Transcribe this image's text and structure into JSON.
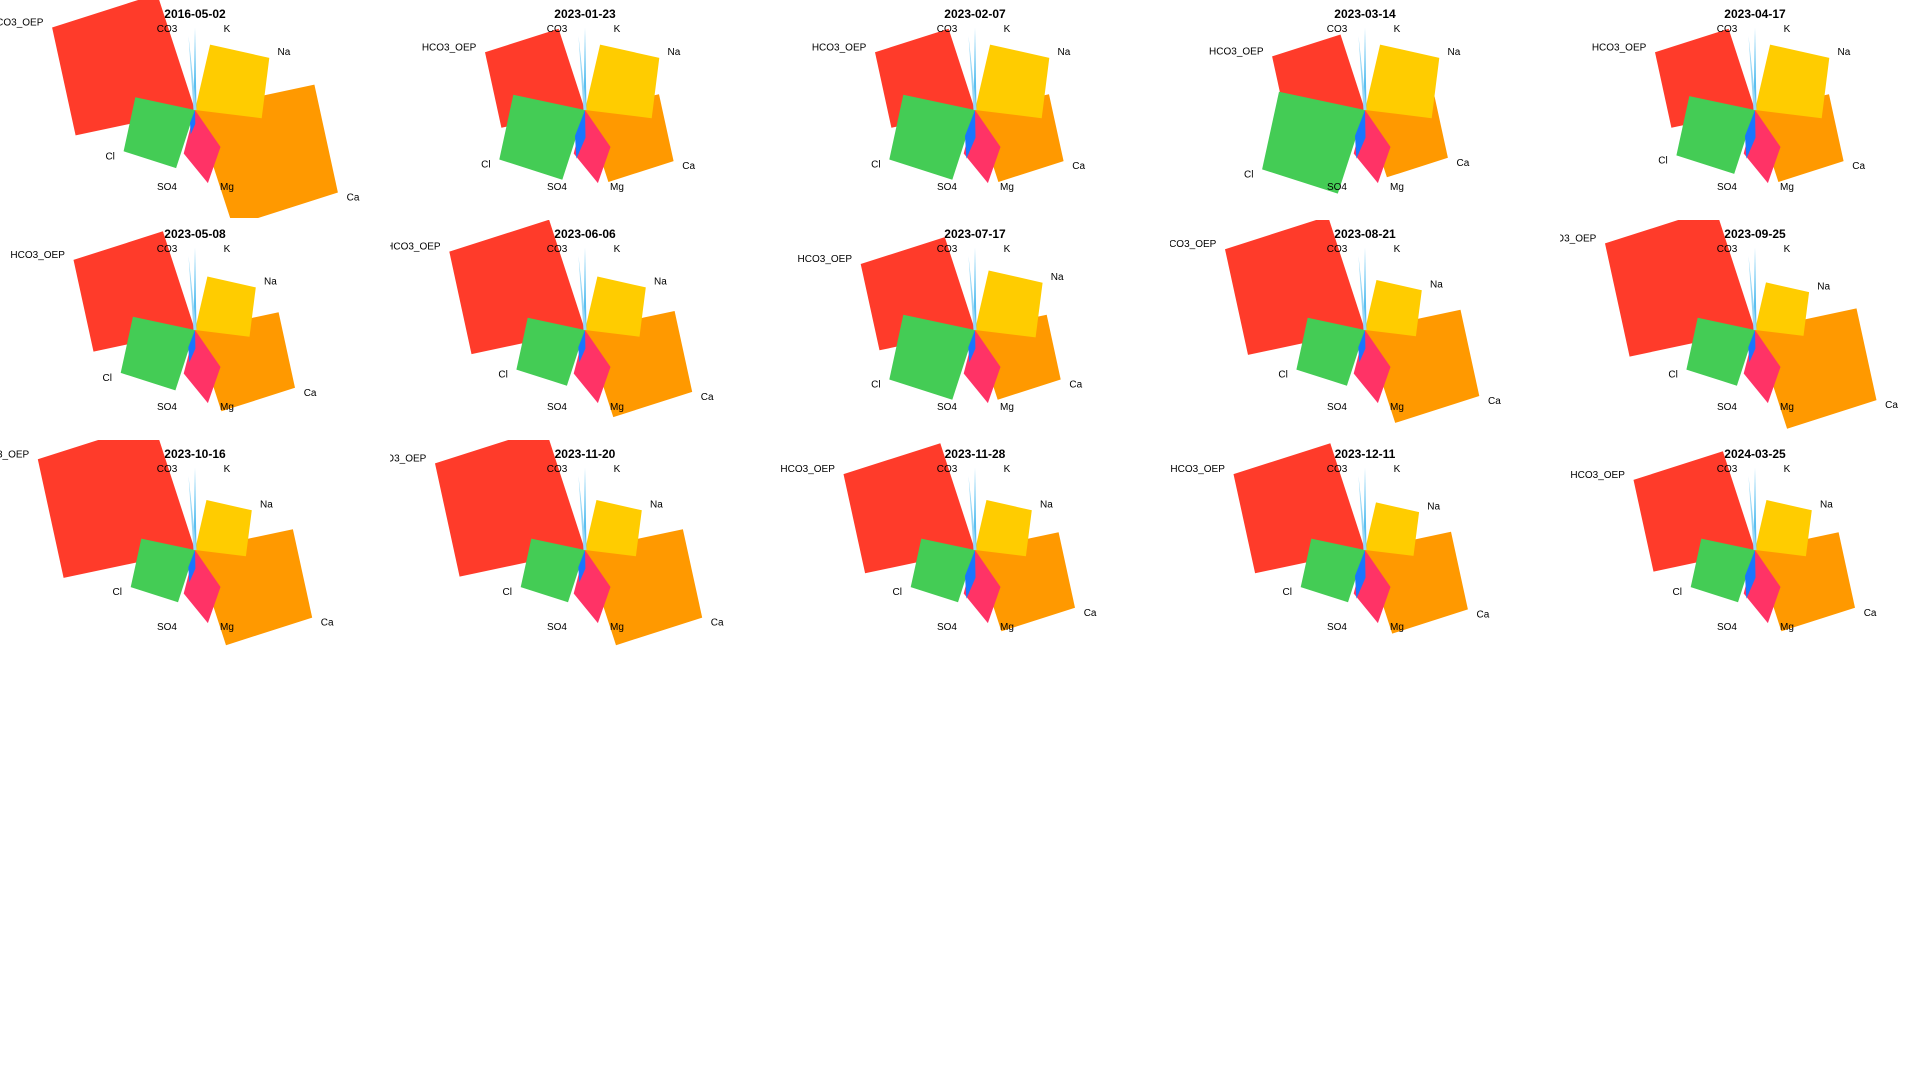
{
  "chart_data": {
    "type": "star",
    "description_free": true,
    "axes": [
      {
        "name": "K",
        "label": "K",
        "color": "#5bc0f0"
      },
      {
        "name": "Na",
        "label": "Na",
        "color": "#ffcc00"
      },
      {
        "name": "Ca",
        "label": "Ca",
        "color": "#ff9900"
      },
      {
        "name": "Mg",
        "label": "Mg",
        "color": "#ff3366"
      },
      {
        "name": "SO4",
        "label": "SO4",
        "color": "#1a75ff"
      },
      {
        "name": "Cl",
        "label": "Cl",
        "color": "#44cc55"
      },
      {
        "name": "HCO3_OEP",
        "label": "HCO3_OEP",
        "color": "#ff3b2a"
      },
      {
        "name": "CO3",
        "label": "CO3",
        "color": "#9ad8f5"
      }
    ],
    "panels": [
      {
        "title": "2016-05-02",
        "values": {
          "K": 0.5,
          "Na": 0.55,
          "Ca": 1.0,
          "Mg": 0.45,
          "SO4": 0.15,
          "Cl": 0.5,
          "HCO3_OEP": 1.0,
          "CO3": 0.45
        }
      },
      {
        "title": "2023-01-23",
        "values": {
          "K": 0.5,
          "Na": 0.55,
          "Ca": 0.62,
          "Mg": 0.45,
          "SO4": 0.3,
          "Cl": 0.6,
          "HCO3_OEP": 0.7,
          "CO3": 0.45
        }
      },
      {
        "title": "2023-02-07",
        "values": {
          "K": 0.5,
          "Na": 0.55,
          "Ca": 0.62,
          "Mg": 0.45,
          "SO4": 0.3,
          "Cl": 0.6,
          "HCO3_OEP": 0.7,
          "CO3": 0.45
        }
      },
      {
        "title": "2023-03-14",
        "values": {
          "K": 0.5,
          "Na": 0.55,
          "Ca": 0.58,
          "Mg": 0.45,
          "SO4": 0.3,
          "Cl": 0.72,
          "HCO3_OEP": 0.65,
          "CO3": 0.45
        }
      },
      {
        "title": "2023-04-17",
        "values": {
          "K": 0.5,
          "Na": 0.55,
          "Ca": 0.62,
          "Mg": 0.45,
          "SO4": 0.3,
          "Cl": 0.55,
          "HCO3_OEP": 0.7,
          "CO3": 0.45
        }
      },
      {
        "title": "2023-05-08",
        "values": {
          "K": 0.5,
          "Na": 0.45,
          "Ca": 0.7,
          "Mg": 0.45,
          "SO4": 0.2,
          "Cl": 0.52,
          "HCO3_OEP": 0.85,
          "CO3": 0.45
        }
      },
      {
        "title": "2023-06-06",
        "values": {
          "K": 0.5,
          "Na": 0.45,
          "Ca": 0.75,
          "Mg": 0.45,
          "SO4": 0.2,
          "Cl": 0.48,
          "HCO3_OEP": 0.95,
          "CO3": 0.45
        }
      },
      {
        "title": "2023-07-17",
        "values": {
          "K": 0.5,
          "Na": 0.5,
          "Ca": 0.6,
          "Mg": 0.45,
          "SO4": 0.2,
          "Cl": 0.6,
          "HCO3_OEP": 0.8,
          "CO3": 0.45
        }
      },
      {
        "title": "2023-08-21",
        "values": {
          "K": 0.5,
          "Na": 0.42,
          "Ca": 0.8,
          "Mg": 0.45,
          "SO4": 0.2,
          "Cl": 0.48,
          "HCO3_OEP": 0.98,
          "CO3": 0.45
        }
      },
      {
        "title": "2023-09-25",
        "values": {
          "K": 0.5,
          "Na": 0.4,
          "Ca": 0.85,
          "Mg": 0.45,
          "SO4": 0.2,
          "Cl": 0.48,
          "HCO3_OEP": 1.05,
          "CO3": 0.45
        }
      },
      {
        "title": "2023-10-16",
        "values": {
          "K": 0.5,
          "Na": 0.42,
          "Ca": 0.82,
          "Mg": 0.45,
          "SO4": 0.2,
          "Cl": 0.45,
          "HCO3_OEP": 1.1,
          "CO3": 0.45
        }
      },
      {
        "title": "2023-11-20",
        "values": {
          "K": 0.5,
          "Na": 0.42,
          "Ca": 0.82,
          "Mg": 0.45,
          "SO4": 0.2,
          "Cl": 0.45,
          "HCO3_OEP": 1.05,
          "CO3": 0.45
        }
      },
      {
        "title": "2023-11-28",
        "values": {
          "K": 0.5,
          "Na": 0.42,
          "Ca": 0.7,
          "Mg": 0.45,
          "SO4": 0.3,
          "Cl": 0.45,
          "HCO3_OEP": 0.92,
          "CO3": 0.45
        }
      },
      {
        "title": "2023-12-11",
        "values": {
          "K": 0.5,
          "Na": 0.4,
          "Ca": 0.72,
          "Mg": 0.45,
          "SO4": 0.3,
          "Cl": 0.45,
          "HCO3_OEP": 0.92,
          "CO3": 0.45
        }
      },
      {
        "title": "2024-03-25",
        "values": {
          "K": 0.5,
          "Na": 0.42,
          "Ca": 0.7,
          "Mg": 0.45,
          "SO4": 0.3,
          "Cl": 0.45,
          "HCO3_OEP": 0.85,
          "CO3": 0.45
        }
      }
    ]
  }
}
